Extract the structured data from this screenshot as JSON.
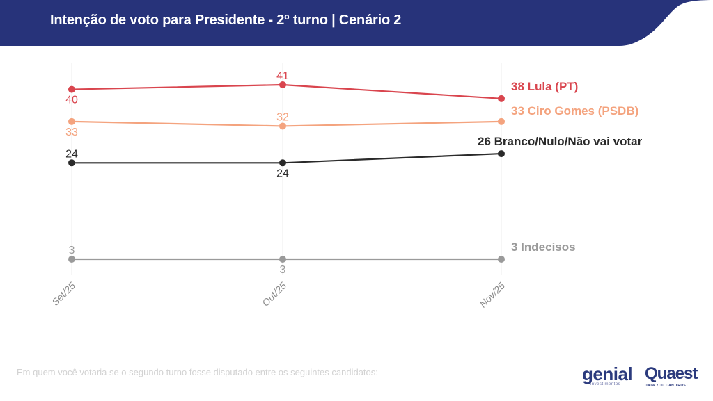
{
  "header": {
    "title": "Intenção de voto para Presidente - 2º turno | Cenário 2",
    "background": "#27337a"
  },
  "footer": {
    "question": "Em quem você votaria se o segundo turno fosse disputado entre os seguintes candidatos:"
  },
  "logos": {
    "genial": {
      "name": "genial",
      "subtitle": "investimentos"
    },
    "quaest": {
      "name": "Quaest",
      "subtitle": "DATA YOU CAN TRUST"
    }
  },
  "chart_data": {
    "type": "line",
    "title": "Intenção de voto para Presidente - 2º turno | Cenário 2",
    "xlabel": "",
    "ylabel": "",
    "categories": [
      "Set/25",
      "Out/25",
      "Nov/25"
    ],
    "ylim": [
      0,
      45
    ],
    "grid": "vertical",
    "legend": "end-of-line labels (right)",
    "series": [
      {
        "name": "Lula (PT)",
        "values": [
          40,
          41,
          38
        ],
        "color": "#d9454e",
        "end_label": "38 Lula (PT)"
      },
      {
        "name": "Ciro Gomes (PSDB)",
        "values": [
          33,
          32,
          33
        ],
        "color": "#f4a37e",
        "end_label": "33 Ciro Gomes (PSDB)"
      },
      {
        "name": "Branco/Nulo/Não vai votar",
        "values": [
          24,
          24,
          26
        ],
        "color": "#2a2a2a",
        "end_label": "26 Branco/Nulo/Não vai votar"
      },
      {
        "name": "Indecisos",
        "values": [
          3,
          3,
          3
        ],
        "color": "#9a9a9a",
        "end_label": "3 Indecisos"
      }
    ]
  }
}
